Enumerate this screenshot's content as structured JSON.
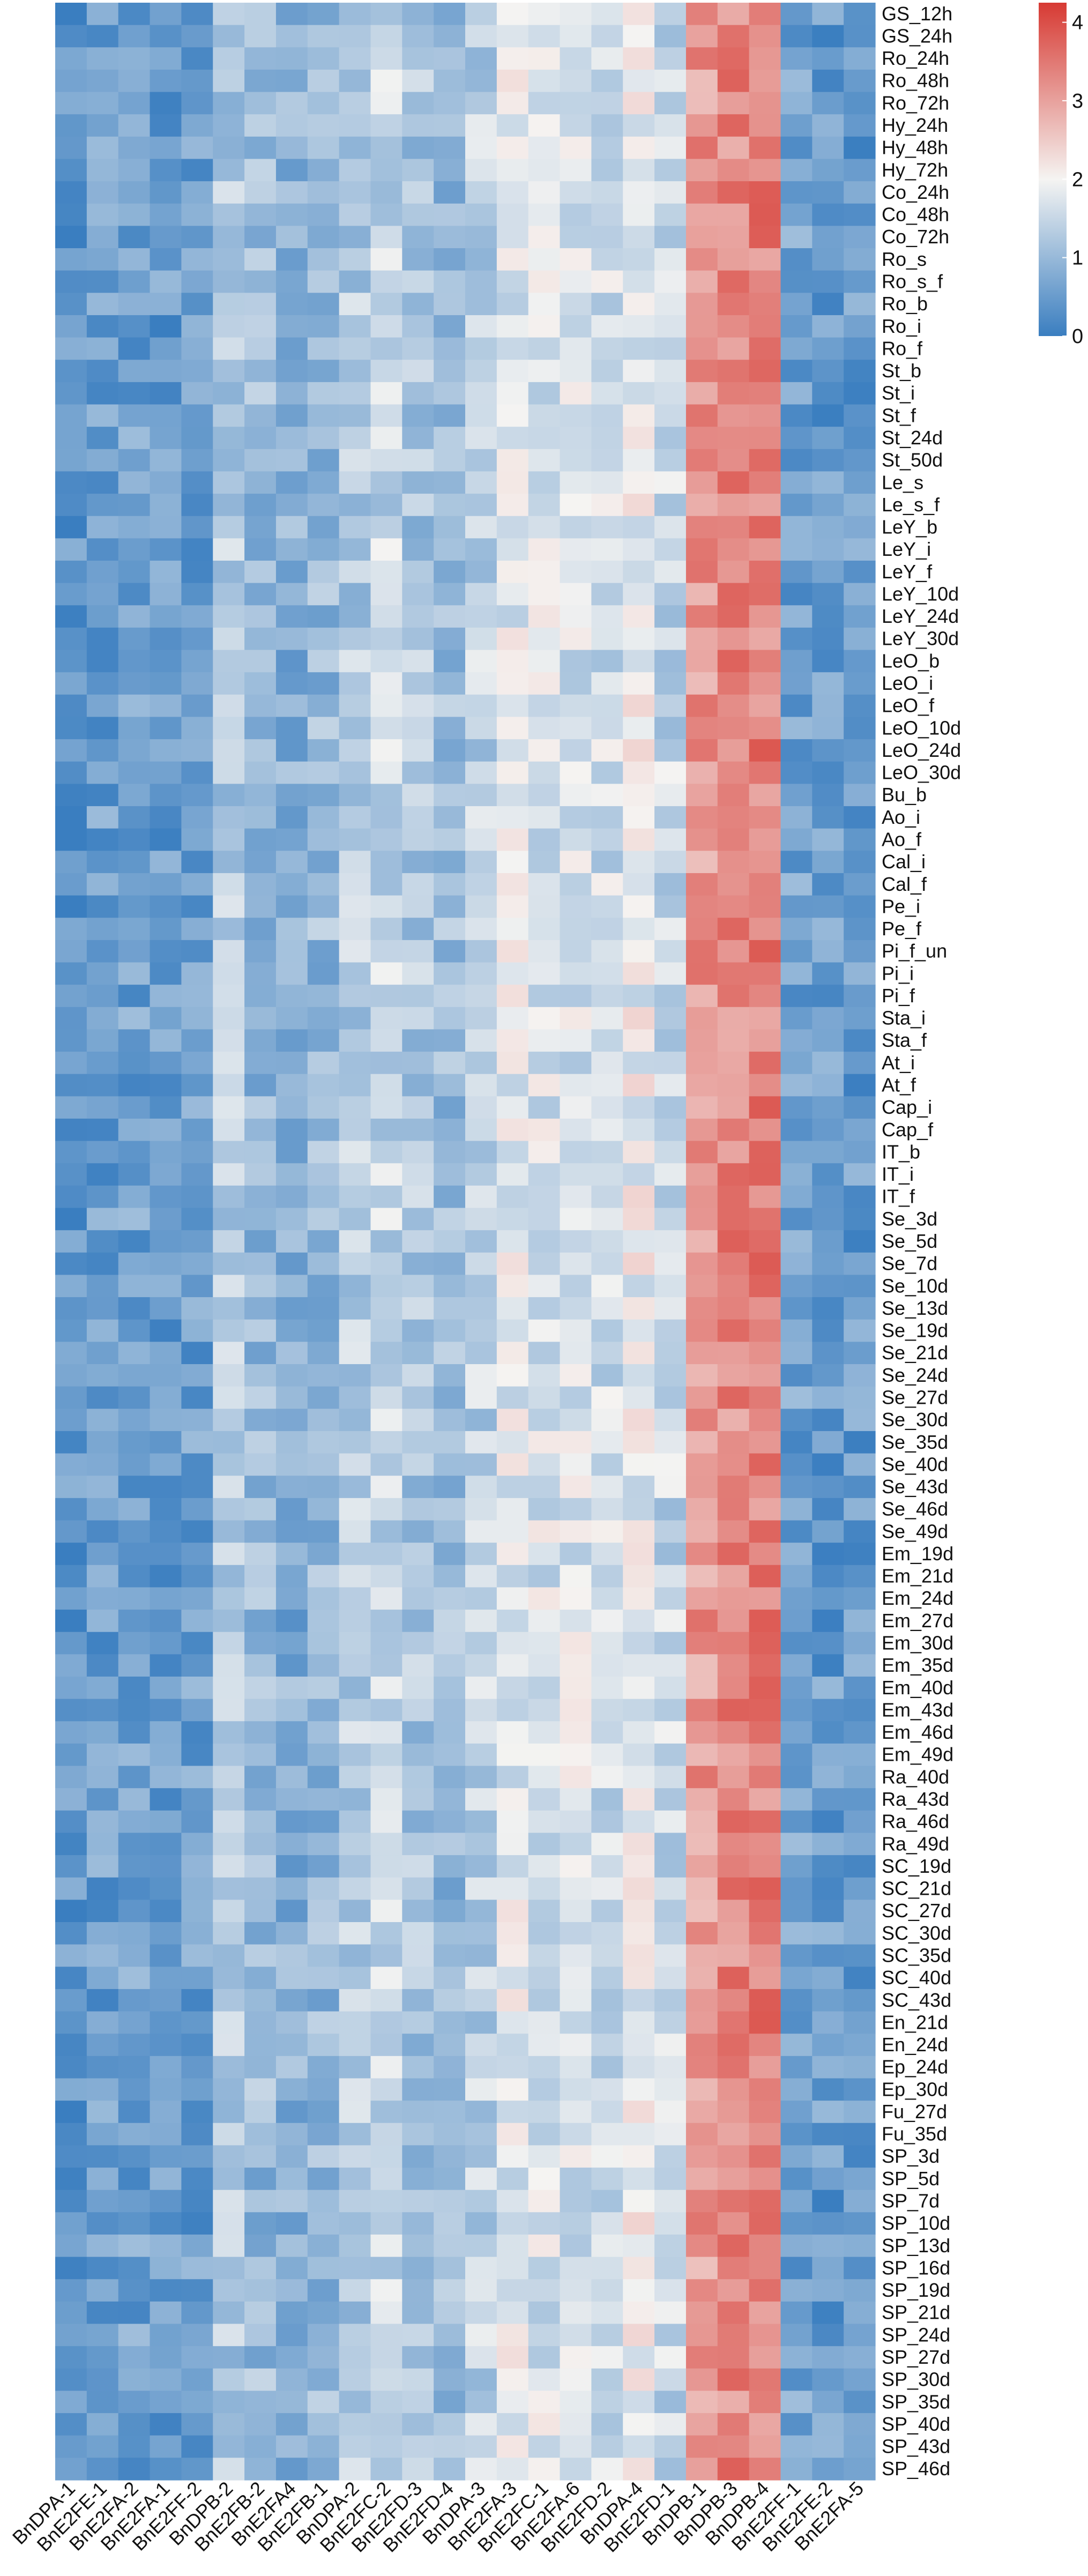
{
  "chart_data": {
    "type": "heatmap",
    "title": "",
    "columns": [
      "BnDPA-1",
      "BnE2FE-1",
      "BnE2FA-2",
      "BnE2FA-1",
      "BnE2FF-2",
      "BnDPB-2",
      "BnE2FB-2",
      "BnE2FA4",
      "BnE2FB-1",
      "BnDPA-2",
      "BnE2FC-2",
      "BnE2FD-3",
      "BnE2FD-4",
      "BnDPA-3",
      "BnE2FA-3",
      "BnE2FC-1",
      "BnE2FA-6",
      "BnE2FD-2",
      "BnDPA-4",
      "BnE2FD-1",
      "BnDPB-1",
      "BnDPB-3",
      "BnDPB-4",
      "BnE2FF-1",
      "BnE2FE-2",
      "BnE2FA-5"
    ],
    "rows": [
      "GS_12h",
      "GS_24h",
      "Ro_24h",
      "Ro_48h",
      "Ro_72h",
      "Hy_24h",
      "Hy_48h",
      "Hy_72h",
      "Co_24h",
      "Co_48h",
      "Co_72h",
      "Ro_s",
      "Ro_s_f",
      "Ro_b",
      "Ro_i",
      "Ro_f",
      "St_b",
      "St_i",
      "St_f",
      "St_24d",
      "St_50d",
      "Le_s",
      "Le_s_f",
      "LeY_b",
      "LeY_i",
      "LeY_f",
      "LeY_10d",
      "LeY_24d",
      "LeY_30d",
      "LeO_b",
      "LeO_i",
      "LeO_f",
      "LeO_10d",
      "LeO_24d",
      "LeO_30d",
      "Bu_b",
      "Ao_i",
      "Ao_f",
      "Cal_i",
      "Cal_f",
      "Pe_i",
      "Pe_f",
      "Pi_f_un",
      "Pi_i",
      "Pi_f",
      "Sta_i",
      "Sta_f",
      "At_i",
      "At_f",
      "Cap_i",
      "Cap_f",
      "IT_b",
      "IT_i",
      "IT_f",
      "Se_3d",
      "Se_5d",
      "Se_7d",
      "Se_10d",
      "Se_13d",
      "Se_19d",
      "Se_21d",
      "Se_24d",
      "Se_27d",
      "Se_30d",
      "Se_35d",
      "Se_40d",
      "Se_43d",
      "Se_46d",
      "Se_49d",
      "Em_19d",
      "Em_21d",
      "Em_24d",
      "Em_27d",
      "Em_30d",
      "Em_35d",
      "Em_40d",
      "Em_43d",
      "Em_46d",
      "Em_49d",
      "Ra_40d",
      "Ra_43d",
      "Ra_46d",
      "Ra_49d",
      "SC_19d",
      "SC_21d",
      "SC_27d",
      "SC_30d",
      "SC_35d",
      "SC_40d",
      "SC_43d",
      "En_21d",
      "En_24d",
      "Ep_24d",
      "Ep_30d",
      "Fu_27d",
      "Fu_35d",
      "SP_3d",
      "SP_5d",
      "SP_7d",
      "SP_10d",
      "SP_13d",
      "SP_16d",
      "SP_19d",
      "SP_21d",
      "SP_24d",
      "SP_27d",
      "SP_30d",
      "SP_35d",
      "SP_40d",
      "SP_43d",
      "SP_46d"
    ],
    "legend": {
      "ticks": [
        0,
        1,
        2,
        3,
        4
      ],
      "min": 0,
      "max": 4.25,
      "low_color": "#3A7EC0",
      "mid_color": "#F5F4F2",
      "high_color": "#D73A33"
    },
    "values_note": "",
    "values": []
  }
}
